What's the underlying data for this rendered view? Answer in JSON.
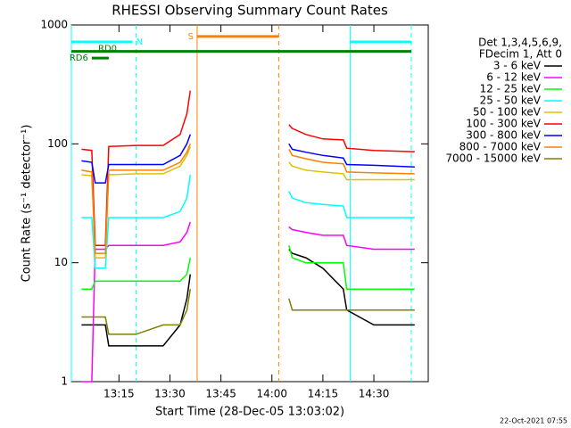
{
  "chart_data": {
    "type": "line",
    "title": "RHESSI Observing Summary Count Rates",
    "x_label": "Start Time (28-Dec-05 13:03:02)",
    "y_label": "Count Rate (s⁻¹ detector⁻¹)",
    "footer": "22-Oct-2021 07:55",
    "legend_title": [
      "Det 1,3,4,5,6,9,",
      "FDecim 1, Att 0"
    ],
    "log_y": true,
    "xlim": [
      "13:01",
      "14:46"
    ],
    "xticks": [
      "13:15",
      "13:30",
      "13:45",
      "14:00",
      "14:15",
      "14:30"
    ],
    "ylim": [
      1,
      1000
    ],
    "yticks": [
      1,
      10,
      100,
      1000
    ],
    "x": [
      "13:04",
      "13:07",
      "13:08",
      "13:11",
      "13:12",
      "13:20",
      "13:28",
      "13:33",
      "13:35",
      "13:36",
      null,
      "14:05",
      "14:06",
      "14:10",
      "14:15",
      "14:21",
      "14:22",
      "14:30",
      "14:42"
    ],
    "series": [
      {
        "name": "3 - 6 keV",
        "color": "#000000",
        "values": [
          3,
          3,
          3,
          3,
          2,
          2,
          2,
          3,
          5,
          8,
          null,
          13,
          12,
          11,
          9,
          6,
          4,
          3,
          3
        ]
      },
      {
        "name": "6 - 12 keV",
        "color": "#ff00ff",
        "values": [
          1,
          1,
          13,
          13,
          14,
          14,
          14,
          15,
          18,
          22,
          null,
          20,
          19,
          18,
          17,
          17,
          14,
          13,
          13
        ]
      },
      {
        "name": "12 - 25 keV",
        "color": "#00ff00",
        "values": [
          6,
          6,
          7,
          7,
          7,
          7,
          7,
          7,
          8,
          11,
          null,
          14,
          11,
          10,
          10,
          10,
          6,
          6,
          6
        ]
      },
      {
        "name": "25 - 50 keV",
        "color": "#00ffff",
        "values": [
          24,
          24,
          9,
          9,
          24,
          24,
          24,
          27,
          35,
          55,
          null,
          40,
          35,
          32,
          31,
          30,
          24,
          24,
          24
        ]
      },
      {
        "name": "50 - 100 keV",
        "color": "#e0c000",
        "values": [
          55,
          54,
          11,
          11,
          55,
          56,
          56,
          65,
          80,
          95,
          null,
          70,
          65,
          60,
          58,
          56,
          50,
          50,
          50
        ]
      },
      {
        "name": "100 - 300 keV",
        "color": "#ff0000",
        "values": [
          90,
          88,
          14,
          14,
          95,
          97,
          97,
          120,
          180,
          280,
          null,
          145,
          135,
          120,
          110,
          108,
          92,
          88,
          86
        ]
      },
      {
        "name": "300 - 800 keV",
        "color": "#0000ff",
        "values": [
          72,
          70,
          47,
          47,
          67,
          67,
          67,
          80,
          100,
          120,
          null,
          100,
          90,
          85,
          80,
          76,
          67,
          66,
          64
        ]
      },
      {
        "name": "800 - 7000 keV",
        "color": "#ff8000",
        "values": [
          60,
          58,
          12,
          12,
          60,
          60,
          60,
          70,
          85,
          100,
          null,
          90,
          80,
          75,
          70,
          68,
          58,
          57,
          56
        ]
      },
      {
        "name": "7000 - 15000 keV",
        "color": "#808000",
        "values": [
          3.5,
          3.5,
          3.5,
          3.5,
          2.5,
          2.5,
          3,
          3,
          4,
          6,
          null,
          5,
          4,
          4,
          4,
          4,
          4,
          4,
          4
        ]
      }
    ],
    "markers": [
      {
        "x": "13:01",
        "color": "#00ffff",
        "style": "solid"
      },
      {
        "x": "13:20",
        "color": "#00ffff",
        "style": "dashed"
      },
      {
        "x": "13:38",
        "color": "#ff8000",
        "style": "solid"
      },
      {
        "x": "14:02",
        "color": "#ff8000",
        "style": "dashed"
      },
      {
        "x": "14:23",
        "color": "#00ffff",
        "style": "solid"
      },
      {
        "x": "14:41",
        "color": "#00ffff",
        "style": "dashed"
      }
    ],
    "bars": [
      {
        "label": "N",
        "color": "#00ffff",
        "x": [
          "13:01",
          "13:19"
        ],
        "y": 720,
        "label_side": "end"
      },
      {
        "label": "N",
        "color": "#00ffff",
        "x": [
          "14:23",
          "14:41"
        ],
        "y": 720,
        "label_side": "none"
      },
      {
        "label": "S",
        "color": "#ff8000",
        "x": [
          "13:38",
          "14:02"
        ],
        "y": 800,
        "label_side": "start"
      },
      {
        "label": "RD0",
        "color": "#008000",
        "x": [
          "13:01",
          "14:41"
        ],
        "y": 600,
        "label_side": "inside"
      },
      {
        "label": "RD6",
        "color": "#008000",
        "x": [
          "13:07",
          "13:12"
        ],
        "y": 527,
        "label_side": "start"
      }
    ]
  }
}
